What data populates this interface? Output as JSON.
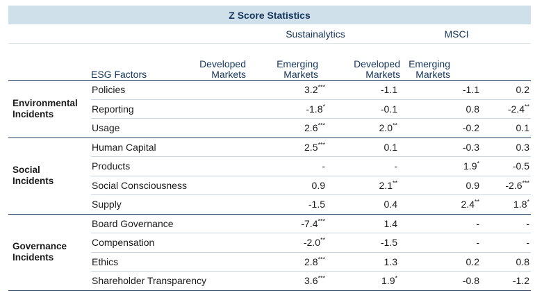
{
  "title": "Z Score Statistics",
  "sources": [
    "Sustainalytics",
    "MSCI"
  ],
  "columns": {
    "factor_header": "ESG Factors",
    "sub_headers": [
      [
        "Developed",
        "Markets"
      ],
      [
        "Emerging",
        "Markets"
      ],
      [
        "Developed",
        "Markets"
      ],
      [
        "Emerging",
        "Markets"
      ]
    ]
  },
  "groups": [
    {
      "label_lines": [
        "Environmental",
        "Incidents"
      ],
      "rows": [
        {
          "factor": "Policies",
          "values": [
            [
              "3.2",
              "***"
            ],
            [
              "-1.1",
              ""
            ],
            [
              "-1.1",
              ""
            ],
            [
              "0.2",
              ""
            ]
          ]
        },
        {
          "factor": "Reporting",
          "values": [
            [
              "-1.8",
              "*"
            ],
            [
              "-0.1",
              ""
            ],
            [
              "0.8",
              ""
            ],
            [
              "-2.4",
              "**"
            ]
          ]
        },
        {
          "factor": "Usage",
          "values": [
            [
              "2.6",
              "***"
            ],
            [
              "2.0",
              "**"
            ],
            [
              "-0.2",
              ""
            ],
            [
              "0.1",
              ""
            ]
          ]
        }
      ]
    },
    {
      "label_lines": [
        "Social",
        "Incidents"
      ],
      "rows": [
        {
          "factor": "Human Capital",
          "values": [
            [
              "2.5",
              "***"
            ],
            [
              "0.1",
              ""
            ],
            [
              "-0.3",
              ""
            ],
            [
              "0.3",
              ""
            ]
          ]
        },
        {
          "factor": "Products",
          "values": [
            [
              "-",
              ""
            ],
            [
              "-",
              ""
            ],
            [
              "1.9",
              "*"
            ],
            [
              "-0.5",
              ""
            ]
          ]
        },
        {
          "factor": "Social Consciousness",
          "values": [
            [
              "0.9",
              ""
            ],
            [
              "2.1",
              "**"
            ],
            [
              "0.9",
              ""
            ],
            [
              "-2.6",
              "***"
            ]
          ]
        },
        {
          "factor": "Supply",
          "values": [
            [
              "-1.5",
              ""
            ],
            [
              "0.4",
              ""
            ],
            [
              "2.4",
              "**"
            ],
            [
              "1.8",
              "*"
            ]
          ]
        }
      ]
    },
    {
      "label_lines": [
        "Governance",
        "Incidents"
      ],
      "rows": [
        {
          "factor": "Board Governance",
          "values": [
            [
              "-7.4",
              "***"
            ],
            [
              "1.4",
              ""
            ],
            [
              "-",
              ""
            ],
            [
              "-",
              ""
            ]
          ]
        },
        {
          "factor": "Compensation",
          "values": [
            [
              "-2.0",
              "**"
            ],
            [
              "-1.5",
              ""
            ],
            [
              "-",
              ""
            ],
            [
              "-",
              ""
            ]
          ]
        },
        {
          "factor": "Ethics",
          "values": [
            [
              "2.8",
              "***"
            ],
            [
              "1.3",
              ""
            ],
            [
              "0.2",
              ""
            ],
            [
              "0.8",
              ""
            ]
          ]
        },
        {
          "factor": "Shareholder Transparency",
          "values": [
            [
              "3.6",
              "***"
            ],
            [
              "1.9",
              "*"
            ],
            [
              "-0.8",
              ""
            ],
            [
              "-1.2",
              ""
            ]
          ]
        }
      ]
    }
  ]
}
